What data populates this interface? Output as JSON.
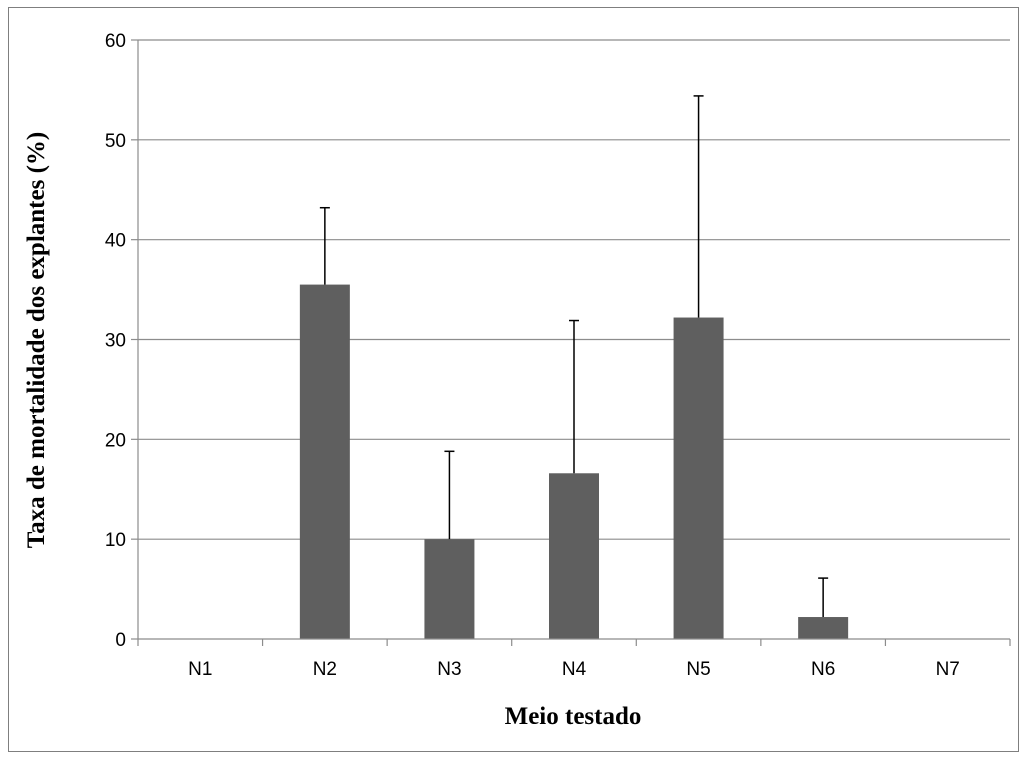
{
  "chart_data": {
    "type": "bar",
    "title": "",
    "xlabel": "Meio testado",
    "ylabel": "Taxa de mortalidade dos explantes (%)",
    "categories": [
      "N1",
      "N2",
      "N3",
      "N4",
      "N5",
      "N6",
      "N7"
    ],
    "series": [
      {
        "values": [
          0,
          35.5,
          10,
          16.6,
          32.2,
          2.2,
          0
        ],
        "error_plus": [
          0,
          7.7,
          8.8,
          15.3,
          22.2,
          3.9,
          0
        ]
      }
    ],
    "ylim": [
      0,
      60
    ],
    "yticks": [
      "0",
      "10",
      "20",
      "30",
      "40",
      "50",
      "60"
    ],
    "grid": true,
    "legend": "none",
    "bar_color": "#5f5f5f",
    "grid_color": "#8c8c8c",
    "axis_color": "#8c8c8c"
  }
}
